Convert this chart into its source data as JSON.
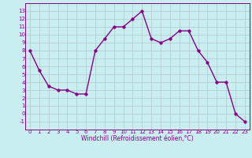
{
  "x": [
    0,
    1,
    2,
    3,
    4,
    5,
    6,
    7,
    8,
    9,
    10,
    11,
    12,
    13,
    14,
    15,
    16,
    17,
    18,
    19,
    20,
    21,
    22,
    23
  ],
  "y": [
    8,
    5.5,
    3.5,
    3.0,
    3.0,
    2.5,
    2.5,
    8.0,
    9.5,
    11.0,
    11.0,
    12.0,
    13.0,
    9.5,
    9.0,
    9.5,
    10.5,
    10.5,
    8.0,
    6.5,
    4.0,
    4.0,
    0.0,
    -1.0
  ],
  "line_color": "#880088",
  "marker_color": "#880088",
  "background_color": "#c8eef0",
  "grid_color": "#b0c8cc",
  "xlabel": "Windchill (Refroidissement éolien,°C)",
  "xlabel_color": "#880088",
  "xlim": [
    -0.5,
    23.5
  ],
  "ylim": [
    -2,
    14
  ],
  "yticks": [
    -1,
    0,
    1,
    2,
    3,
    4,
    5,
    6,
    7,
    8,
    9,
    10,
    11,
    12,
    13
  ],
  "xticks": [
    0,
    1,
    2,
    3,
    4,
    5,
    6,
    7,
    8,
    9,
    10,
    11,
    12,
    13,
    14,
    15,
    16,
    17,
    18,
    19,
    20,
    21,
    22,
    23
  ],
  "tick_color": "#880088",
  "marker_size": 2.5,
  "line_width": 1.0,
  "tick_fontsize": 5.0,
  "xlabel_fontsize": 5.5
}
